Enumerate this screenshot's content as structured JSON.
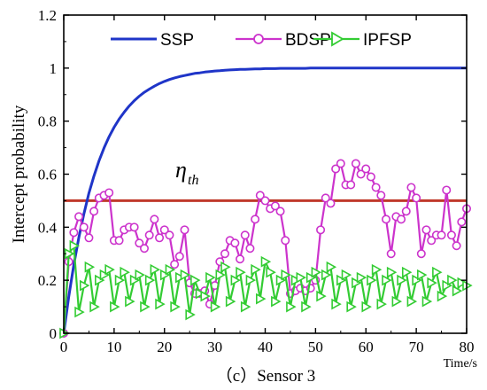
{
  "chart_data": {
    "type": "line",
    "caption": "（c）Sensor 3",
    "xlabel": "Time/s",
    "ylabel": "Intercept probability",
    "xlim": [
      0,
      80
    ],
    "ylim": [
      0,
      1.2
    ],
    "xticks": [
      "0",
      "10",
      "20",
      "30",
      "40",
      "50",
      "60",
      "70",
      "80"
    ],
    "yticks": [
      "0",
      "0.2",
      "0.4",
      "0.6",
      "0.8",
      "1",
      "1.2"
    ],
    "legend_position": "top",
    "threshold": {
      "value": 0.5,
      "label": "η",
      "label_sub": "th",
      "color": "#c0392b"
    },
    "series": [
      {
        "name": "SSP",
        "color": "#1f35c8",
        "marker": "none",
        "x": [
          0,
          1,
          2,
          3,
          4,
          5,
          6,
          7,
          8,
          9,
          10,
          11,
          12,
          13,
          14,
          15,
          16,
          17,
          18,
          19,
          20,
          21,
          22,
          23,
          24,
          25,
          26,
          27,
          28,
          29,
          30,
          31,
          32,
          33,
          34,
          35,
          36,
          37,
          38,
          39,
          40,
          41,
          42,
          43,
          44,
          45,
          46,
          47,
          48,
          49,
          50,
          51,
          52,
          53,
          54,
          55,
          56,
          57,
          58,
          59,
          60,
          61,
          62,
          63,
          64,
          65,
          66,
          67,
          68,
          69,
          70,
          71,
          72,
          73,
          74,
          75,
          76,
          77,
          78,
          79,
          80
        ],
        "y": [
          0,
          0.139,
          0.259,
          0.362,
          0.451,
          0.528,
          0.593,
          0.65,
          0.699,
          0.741,
          0.777,
          0.808,
          0.834,
          0.857,
          0.877,
          0.894,
          0.909,
          0.921,
          0.932,
          0.942,
          0.95,
          0.957,
          0.963,
          0.968,
          0.972,
          0.976,
          0.98,
          0.982,
          0.985,
          0.987,
          0.989,
          0.99,
          0.992,
          0.993,
          0.994,
          0.995,
          0.995,
          0.996,
          0.997,
          0.997,
          0.998,
          0.998,
          0.998,
          0.999,
          0.999,
          0.999,
          0.999,
          0.999,
          0.999,
          1,
          1,
          1,
          1,
          1,
          1,
          1,
          1,
          1,
          1,
          1,
          1,
          1,
          1,
          1,
          1,
          1,
          1,
          1,
          1,
          1,
          1,
          1,
          1,
          1,
          1,
          1,
          1,
          1,
          1,
          1,
          1
        ]
      },
      {
        "name": "BDSP",
        "color": "#cc33cc",
        "marker": "circle",
        "x": [
          0,
          1,
          2,
          3,
          4,
          5,
          6,
          7,
          8,
          9,
          10,
          11,
          12,
          13,
          14,
          15,
          16,
          17,
          18,
          19,
          20,
          21,
          22,
          23,
          24,
          25,
          26,
          27,
          28,
          29,
          30,
          31,
          32,
          33,
          34,
          35,
          36,
          37,
          38,
          39,
          40,
          41,
          42,
          43,
          44,
          45,
          46,
          47,
          48,
          49,
          50,
          51,
          52,
          53,
          54,
          55,
          56,
          57,
          58,
          59,
          60,
          61,
          62,
          63,
          64,
          65,
          66,
          67,
          68,
          69,
          70,
          71,
          72,
          73,
          74,
          75,
          76,
          77,
          78,
          79,
          80
        ],
        "y": [
          0,
          0.27,
          0.38,
          0.44,
          0.4,
          0.36,
          0.46,
          0.51,
          0.52,
          0.53,
          0.35,
          0.35,
          0.39,
          0.4,
          0.4,
          0.34,
          0.32,
          0.37,
          0.43,
          0.36,
          0.39,
          0.37,
          0.26,
          0.29,
          0.39,
          0.19,
          0.15,
          0.15,
          0.16,
          0.11,
          0.18,
          0.27,
          0.3,
          0.35,
          0.34,
          0.28,
          0.37,
          0.32,
          0.43,
          0.52,
          0.5,
          0.47,
          0.48,
          0.46,
          0.35,
          0.15,
          0.16,
          0.17,
          0.16,
          0.17,
          0.2,
          0.39,
          0.51,
          0.49,
          0.62,
          0.64,
          0.56,
          0.56,
          0.64,
          0.6,
          0.62,
          0.59,
          0.55,
          0.52,
          0.43,
          0.3,
          0.44,
          0.43,
          0.46,
          0.55,
          0.51,
          0.3,
          0.39,
          0.35,
          0.37,
          0.37,
          0.54,
          0.37,
          0.33,
          0.42,
          0.47
        ]
      },
      {
        "name": "IPFSP",
        "color": "#33cc33",
        "marker": "triangle-right",
        "x": [
          0,
          1,
          2,
          3,
          4,
          5,
          6,
          7,
          8,
          9,
          10,
          11,
          12,
          13,
          14,
          15,
          16,
          17,
          18,
          19,
          20,
          21,
          22,
          23,
          24,
          25,
          26,
          27,
          28,
          29,
          30,
          31,
          32,
          33,
          34,
          35,
          36,
          37,
          38,
          39,
          40,
          41,
          42,
          43,
          44,
          45,
          46,
          47,
          48,
          49,
          50,
          51,
          52,
          53,
          54,
          55,
          56,
          57,
          58,
          59,
          60,
          61,
          62,
          63,
          64,
          65,
          66,
          67,
          68,
          69,
          70,
          71,
          72,
          73,
          74,
          75,
          76,
          77,
          78,
          79,
          80
        ],
        "y": [
          0,
          0.3,
          0.33,
          0.08,
          0.18,
          0.25,
          0.1,
          0.2,
          0.22,
          0.24,
          0.1,
          0.2,
          0.23,
          0.12,
          0.2,
          0.22,
          0.1,
          0.2,
          0.24,
          0.11,
          0.22,
          0.24,
          0.1,
          0.21,
          0.22,
          0.07,
          0.2,
          0.15,
          0.14,
          0.21,
          0.1,
          0.22,
          0.25,
          0.12,
          0.2,
          0.23,
          0.1,
          0.2,
          0.24,
          0.13,
          0.27,
          0.23,
          0.12,
          0.2,
          0.22,
          0.1,
          0.2,
          0.21,
          0.1,
          0.21,
          0.23,
          0.14,
          0.22,
          0.25,
          0.11,
          0.2,
          0.22,
          0.1,
          0.19,
          0.21,
          0.1,
          0.2,
          0.24,
          0.11,
          0.2,
          0.23,
          0.12,
          0.2,
          0.23,
          0.12,
          0.2,
          0.22,
          0.12,
          0.19,
          0.23,
          0.14,
          0.18,
          0.2,
          0.16,
          0.19,
          0.18
        ]
      }
    ]
  }
}
